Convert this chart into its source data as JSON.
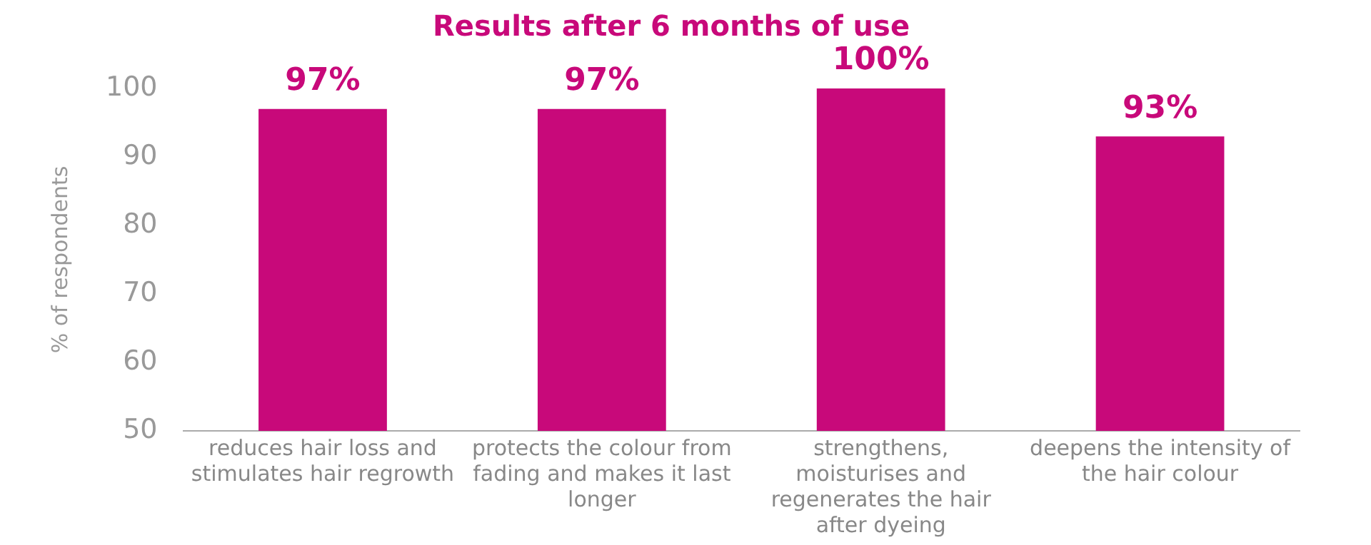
{
  "chart_data": {
    "type": "bar",
    "title": "Results after 6 months of use",
    "ylabel": "% of respondents",
    "categories": [
      "reduces hair loss and stimulates hair regrowth",
      "protects the colour from fading and makes it last longer",
      "strengthens, moisturises and regenerates the hair after dyeing",
      "deepens the intensity of the hair colour"
    ],
    "values": [
      97,
      97,
      100,
      93
    ],
    "color": "#c8097a",
    "value_labels": [
      "97%",
      "97%",
      "100%",
      "93%"
    ],
    "ylim": [
      50,
      100
    ],
    "yticks": [
      50,
      60,
      70,
      80,
      90,
      100
    ],
    "grid": false,
    "legend": false
  }
}
